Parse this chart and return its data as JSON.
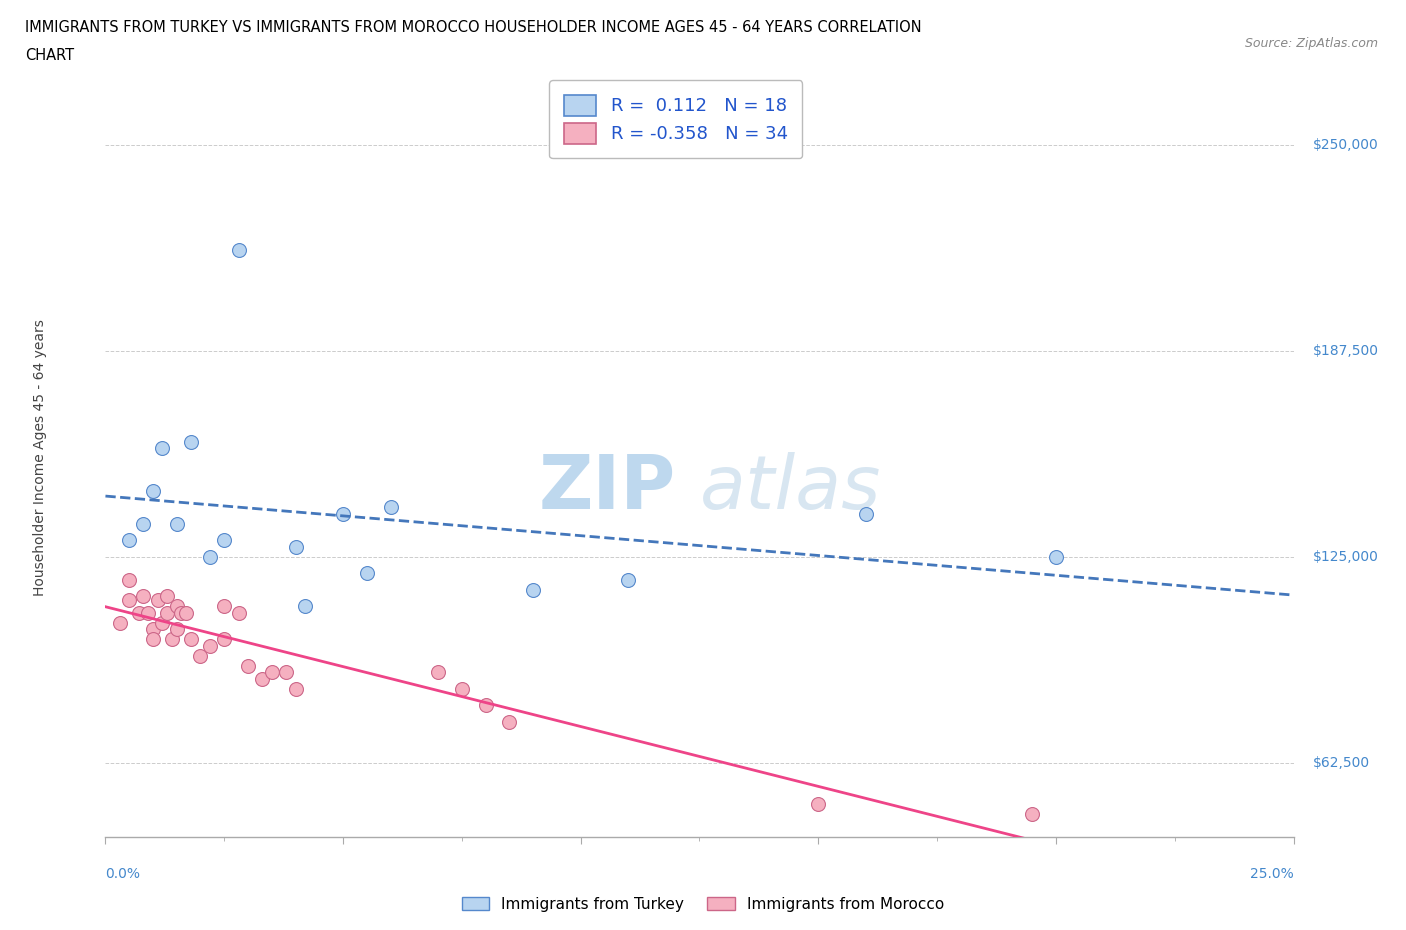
{
  "title_line1": "IMMIGRANTS FROM TURKEY VS IMMIGRANTS FROM MOROCCO HOUSEHOLDER INCOME AGES 45 - 64 YEARS CORRELATION",
  "title_line2": "CHART",
  "source_text": "Source: ZipAtlas.com",
  "ylabel": "Householder Income Ages 45 - 64 years",
  "xlim": [
    0.0,
    0.25
  ],
  "ylim": [
    40000,
    270000
  ],
  "ytick_values": [
    62500,
    125000,
    187500,
    250000
  ],
  "ytick_labels": [
    "$62,500",
    "$125,000",
    "$187,500",
    "$250,000"
  ],
  "turkey_color": "#b8d4f0",
  "turkey_edge_color": "#5588cc",
  "morocco_color": "#f5b0c0",
  "morocco_edge_color": "#cc6688",
  "turkey_line_color": "#4477bb",
  "morocco_line_color": "#ee4488",
  "legend_text_color": "#2255cc",
  "turkey_R": 0.112,
  "turkey_N": 18,
  "morocco_R": -0.358,
  "morocco_N": 34,
  "turkey_scatter_x": [
    0.005,
    0.008,
    0.01,
    0.012,
    0.015,
    0.018,
    0.022,
    0.025,
    0.028,
    0.04,
    0.042,
    0.05,
    0.055,
    0.06,
    0.09,
    0.11,
    0.16,
    0.2
  ],
  "turkey_scatter_y": [
    130000,
    135000,
    145000,
    158000,
    135000,
    160000,
    125000,
    130000,
    218000,
    128000,
    110000,
    138000,
    120000,
    140000,
    115000,
    118000,
    138000,
    125000
  ],
  "morocco_scatter_x": [
    0.003,
    0.005,
    0.005,
    0.007,
    0.008,
    0.009,
    0.01,
    0.01,
    0.011,
    0.012,
    0.013,
    0.013,
    0.014,
    0.015,
    0.015,
    0.016,
    0.017,
    0.018,
    0.02,
    0.022,
    0.025,
    0.025,
    0.028,
    0.03,
    0.033,
    0.035,
    0.038,
    0.04,
    0.07,
    0.075,
    0.08,
    0.085,
    0.15,
    0.195
  ],
  "morocco_scatter_y": [
    105000,
    118000,
    112000,
    108000,
    113000,
    108000,
    103000,
    100000,
    112000,
    105000,
    113000,
    108000,
    100000,
    110000,
    103000,
    108000,
    108000,
    100000,
    95000,
    98000,
    110000,
    100000,
    108000,
    92000,
    88000,
    90000,
    90000,
    85000,
    90000,
    85000,
    80000,
    75000,
    50000,
    47000
  ],
  "watermark_text": "ZIPatlas",
  "background_color": "#ffffff",
  "grid_color": "#cccccc",
  "axis_color": "#aaaaaa",
  "tick_label_color": "#4488cc",
  "marker_size": 100
}
